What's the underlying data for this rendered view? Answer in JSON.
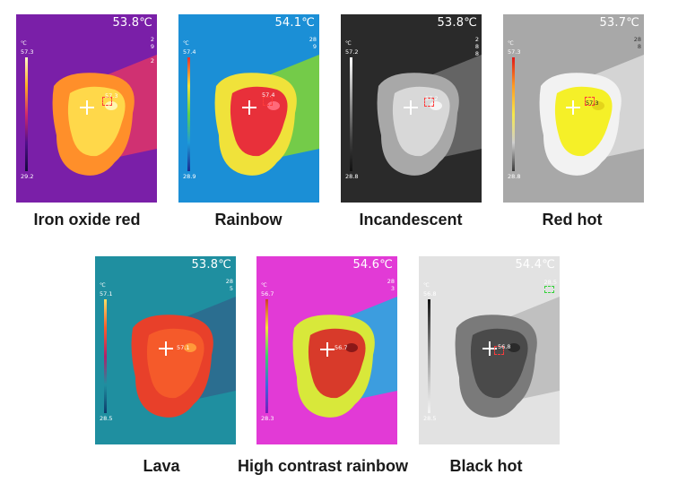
{
  "tiles": [
    {
      "caption": "Iron oxide red",
      "temp": "53.8℃",
      "unit": "℃",
      "max": "57.3",
      "min": "29.2",
      "hot": "57.3",
      "side": "2\n9\n\n2"
    },
    {
      "caption": "Rainbow",
      "temp": "54.1℃",
      "unit": "℃",
      "max": "57.4",
      "min": "28.9",
      "hot": "57.4",
      "side": "28\n9"
    },
    {
      "caption": "Incandescent",
      "temp": "53.8℃",
      "unit": "℃",
      "max": "57.2",
      "min": "28.8",
      "hot": "57.2",
      "side": "2\n8\n8"
    },
    {
      "caption": "Red hot",
      "temp": "53.7℃",
      "unit": "℃",
      "max": "57.3",
      "min": "28.8",
      "hot": "57.3",
      "side": "28\n8"
    },
    {
      "caption": "Lava",
      "temp": "53.8℃",
      "unit": "℃",
      "max": "57.1",
      "min": "28.5",
      "hot": "57.1",
      "side": "28\n5"
    },
    {
      "caption": "High contrast rainbow",
      "temp": "54.6℃",
      "unit": "℃",
      "max": "56.7",
      "min": "28.3",
      "hot": "56.7",
      "side": "28\n3"
    },
    {
      "caption": "Black hot",
      "temp": "54.4℃",
      "unit": "℃",
      "max": "56.8",
      "min": "28.5",
      "hot": "56.8",
      "side": "28.5"
    }
  ],
  "palettes": {
    "iron": {
      "bg": "#7a1fa8",
      "mid": "#d9336b",
      "outer": "#ff8f2a",
      "inner": "#ffd84a",
      "hotspot": "#fff6b0",
      "scale": [
        "#fff8c8",
        "#ffb020",
        "#d02a6a",
        "#50108a",
        "#140a3a"
      ]
    },
    "rainbow": {
      "bg": "#1b8fd6",
      "mid": "#7ed13a",
      "outer": "#f0e23a",
      "inner": "#e8303a",
      "hotspot": "#ff6a7a",
      "scale": [
        "#e6302e",
        "#f6e236",
        "#5fd04a",
        "#1e9ad8",
        "#1a2a90"
      ]
    },
    "incandescent": {
      "bg": "#2a2a2a",
      "mid": "#6a6a6a",
      "outer": "#a8a8a8",
      "inner": "#d8d8d8",
      "hotspot": "#f5f5f5",
      "scale": [
        "#ffffff",
        "#bbbbbb",
        "#777777",
        "#3a3a3a",
        "#111111"
      ]
    },
    "redhot": {
      "bg": "#a8a8a8",
      "mid": "#d8d8d8",
      "outer": "#f2f2f2",
      "inner": "#f5f028",
      "hotspot": "#e4d41a",
      "scale": [
        "#e01818",
        "#ff9a20",
        "#f6e84a",
        "#cfcfcf",
        "#3a3a3a"
      ]
    },
    "lava": {
      "bg": "#1f8fa0",
      "mid": "#2c6a8e",
      "outer": "#e8402a",
      "inner": "#f55a2a",
      "hotspot": "#ff9a3a",
      "scale": [
        "#ffe066",
        "#ff5a28",
        "#b0206a",
        "#1f8fa0",
        "#0e3a6a"
      ]
    },
    "hcrainbow": {
      "bg": "#e23ad6",
      "mid": "#2aa8e0",
      "outer": "#d8e83a",
      "inner": "#d83a2a",
      "hotspot": "#8a1818",
      "scale": [
        "#d03a2a",
        "#f5e23a",
        "#3ad06a",
        "#3a6ae0",
        "#7a1ab8"
      ]
    },
    "blackhot": {
      "bg": "#e2e2e2",
      "mid": "#bdbdbd",
      "outer": "#7a7a7a",
      "inner": "#4a4a4a",
      "hotspot": "#2a2a2a",
      "scale": [
        "#111111",
        "#555555",
        "#999999",
        "#cccccc",
        "#f5f5f5"
      ]
    }
  }
}
